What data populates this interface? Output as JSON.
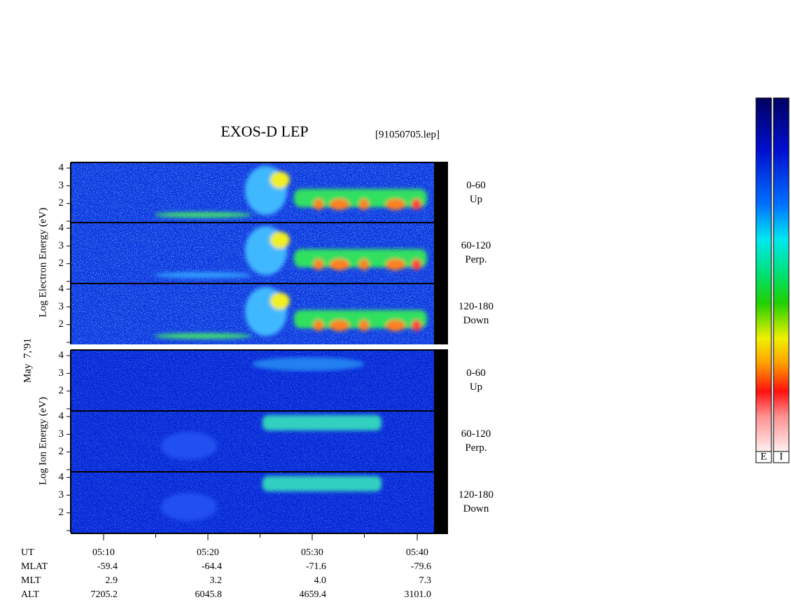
{
  "title": "EXOS-D LEP",
  "file": "[91050705.lep]",
  "date": "May  7,'91",
  "electron_label": "Log Electron Energy (eV)",
  "ion_label": "Log Ion Energy (eV)",
  "ylim": [
    1,
    4.2
  ],
  "yticks": [
    2,
    3,
    4
  ],
  "panels": [
    {
      "species": "electron",
      "angle": "0-60",
      "direction": "Up"
    },
    {
      "species": "electron",
      "angle": "60-120",
      "direction": "Perp."
    },
    {
      "species": "electron",
      "angle": "120-180",
      "direction": "Down"
    },
    {
      "species": "ion",
      "angle": "0-60",
      "direction": "Up"
    },
    {
      "species": "ion",
      "angle": "60-120",
      "direction": "Perp."
    },
    {
      "species": "ion",
      "angle": "120-180",
      "direction": "Down"
    }
  ],
  "ephemeris": {
    "rows": [
      {
        "name": "UT",
        "values": [
          "05:10",
          "05:20",
          "05:30",
          "05:40"
        ]
      },
      {
        "name": "MLAT",
        "values": [
          "-59.4",
          "-64.4",
          "-71.6",
          "-79.6"
        ]
      },
      {
        "name": "MLT",
        "values": [
          "2.9",
          "3.2",
          "4.0",
          "7.3"
        ]
      },
      {
        "name": "ALT",
        "values": [
          "7205.2",
          "6045.8",
          "4659.4",
          "3101.0"
        ]
      }
    ]
  },
  "colorbar": [
    "E",
    "I"
  ]
}
